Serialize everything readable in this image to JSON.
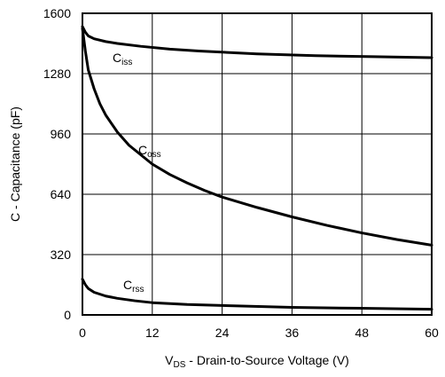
{
  "chart_data": {
    "type": "line",
    "xlabel_prefix": "V",
    "xlabel_sub": "DS",
    "xlabel_rest": " - Drain-to-Source Voltage (V)",
    "ylabel": "C - Capacitance (pF)",
    "xlim": [
      0,
      60
    ],
    "ylim": [
      0,
      1600
    ],
    "xticks": [
      0,
      12,
      24,
      36,
      48,
      60
    ],
    "yticks": [
      0,
      320,
      640,
      960,
      1280,
      1600
    ],
    "grid": true,
    "series": [
      {
        "name": "Ciss",
        "label_main": "C",
        "label_sub": "iss",
        "x": [
          0,
          0.5,
          1,
          2,
          4,
          6,
          10,
          15,
          20,
          30,
          40,
          50,
          60
        ],
        "y": [
          1530,
          1500,
          1480,
          1465,
          1450,
          1440,
          1425,
          1410,
          1400,
          1385,
          1375,
          1370,
          1365
        ]
      },
      {
        "name": "Coss",
        "label_main": "C",
        "label_sub": "oss",
        "x": [
          0,
          0.5,
          1,
          2,
          3,
          4,
          6,
          8,
          10,
          12,
          15,
          18,
          21,
          24,
          30,
          36,
          42,
          48,
          54,
          60
        ],
        "y": [
          1520,
          1400,
          1300,
          1200,
          1120,
          1060,
          970,
          900,
          850,
          800,
          745,
          700,
          660,
          625,
          570,
          520,
          475,
          435,
          400,
          370
        ]
      },
      {
        "name": "Crss",
        "label_main": "C",
        "label_sub": "rss",
        "x": [
          0,
          0.5,
          1,
          2,
          4,
          6,
          9,
          12,
          18,
          24,
          36,
          48,
          60
        ],
        "y": [
          190,
          160,
          140,
          120,
          100,
          88,
          75,
          65,
          55,
          50,
          40,
          35,
          30
        ]
      }
    ]
  }
}
